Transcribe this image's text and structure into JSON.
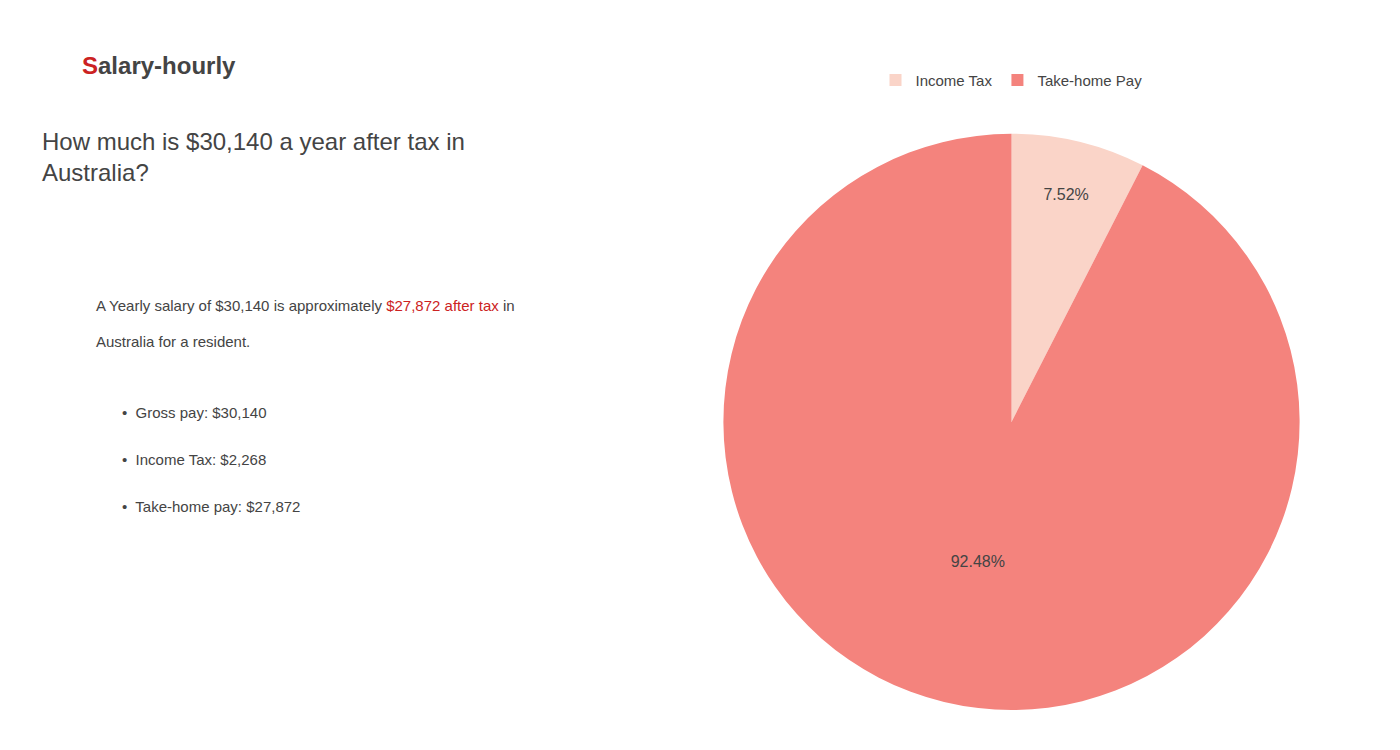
{
  "chart_data": {
    "type": "pie",
    "title": "How much is $30,140 a year after tax in\nAustralia?",
    "categories": [
      "Income Tax",
      "Take-home Pay"
    ],
    "values": [
      7.52,
      92.48
    ],
    "value_labels": [
      "7.52%",
      "92.48%"
    ],
    "colors": [
      "#fad4c8",
      "#f4837d"
    ],
    "data_labels": true,
    "legend": "top",
    "annotations": [
      [
        {
          "text": "S",
          "color": "#cc2222"
        },
        {
          "text": "alary-hourly"
        }
      ],
      [
        {
          "text": "A Yearly salary of $30,140 is approximately "
        },
        {
          "text": "$27,872 after tax",
          "color": "#cc2222"
        },
        {
          "text": " in"
        }
      ],
      [
        {
          "text": "Australia for a resident."
        }
      ],
      [
        {
          "text": "•  Gross pay: $30,140"
        }
      ],
      [
        {
          "text": "•  Income Tax: $2,268"
        }
      ],
      [
        {
          "text": "•  Take-home pay: $27,872"
        }
      ]
    ]
  }
}
